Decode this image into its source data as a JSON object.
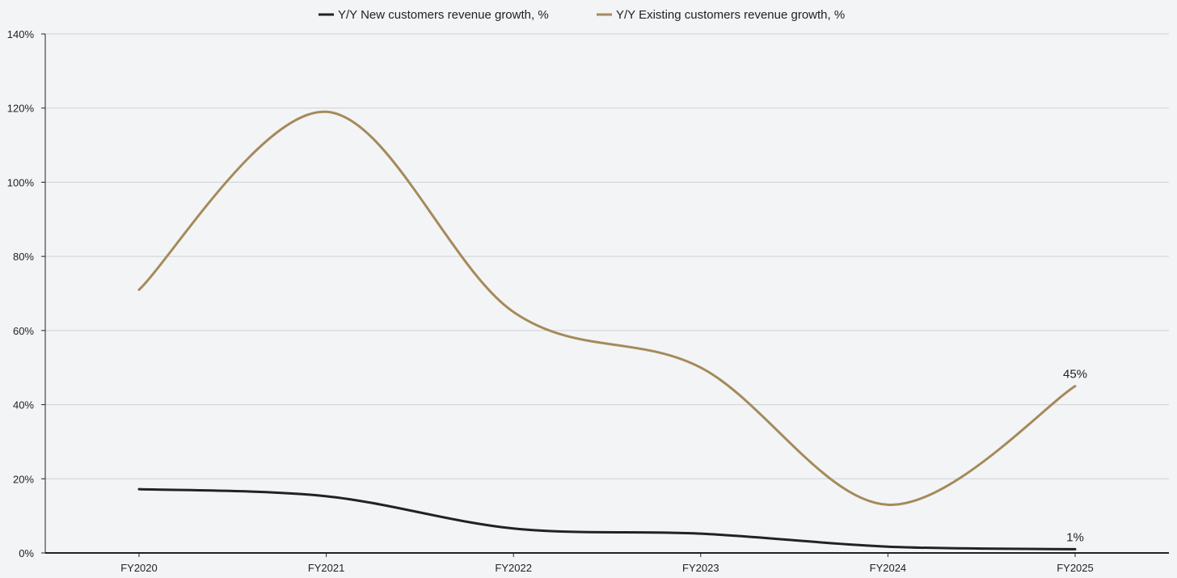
{
  "chart_data": {
    "type": "line",
    "title": "",
    "xlabel": "",
    "ylabel": "",
    "categories": [
      "FY2020",
      "FY2021",
      "FY2022",
      "FY2023",
      "FY2024",
      "FY2025"
    ],
    "ylim": [
      0,
      140
    ],
    "yticks": [
      0,
      20,
      40,
      60,
      80,
      100,
      120,
      140
    ],
    "ytick_labels": [
      "0%",
      "20%",
      "40%",
      "60%",
      "80%",
      "100%",
      "120%",
      "140%"
    ],
    "grid": true,
    "legend_position": "top-center",
    "series": [
      {
        "name": "Y/Y New customers revenue growth, %",
        "color": "#222222",
        "values": [
          17.2,
          15.3,
          6.6,
          5.2,
          1.7,
          1
        ],
        "end_label": "1%"
      },
      {
        "name": "Y/Y Existing customers revenue growth, %",
        "color": "#a58a5a",
        "values": [
          71,
          119,
          65,
          50,
          13,
          45
        ],
        "end_label": "45%"
      }
    ]
  }
}
